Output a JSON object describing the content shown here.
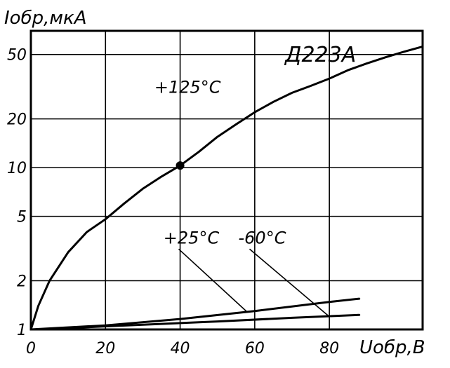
{
  "chart_data": {
    "type": "line",
    "title": "Д223А",
    "xlabel": "Uобр,В",
    "ylabel": "Iобр,мкА",
    "xlim": [
      0,
      105
    ],
    "ylim": [
      1,
      70
    ],
    "y_scale": "log",
    "grid": true,
    "x_ticks": [
      0,
      20,
      40,
      60,
      80
    ],
    "x_tick_labels": [
      "0",
      "20",
      "40",
      "60",
      "80"
    ],
    "y_ticks": [
      1,
      2,
      5,
      10,
      20,
      50
    ],
    "y_tick_labels": [
      "1",
      "2",
      "5",
      "10",
      "20",
      "50"
    ],
    "series": [
      {
        "name": "+125°C",
        "x": [
          0,
          2,
          5,
          10,
          15,
          20,
          25,
          30,
          35,
          40,
          45,
          50,
          55,
          60,
          65,
          70,
          75,
          80,
          85,
          90,
          95,
          100,
          105
        ],
        "y": [
          1.0,
          1.4,
          2.0,
          3.0,
          4.0,
          4.8,
          6.0,
          7.4,
          8.8,
          10.3,
          12.5,
          15.5,
          18.5,
          22.0,
          25.5,
          29.0,
          32.0,
          35.5,
          40.0,
          44.0,
          48.0,
          52.0,
          56.0
        ]
      },
      {
        "name": "+25°C",
        "x": [
          0,
          20,
          40,
          60,
          80,
          88
        ],
        "y": [
          1.0,
          1.06,
          1.16,
          1.3,
          1.48,
          1.55
        ]
      },
      {
        "name": "-60°C",
        "x": [
          10,
          30,
          50,
          70,
          88
        ],
        "y": [
          1.02,
          1.07,
          1.12,
          1.18,
          1.23
        ]
      }
    ],
    "annotations": [
      {
        "text": "+125°C",
        "x": 42,
        "y": 29
      },
      {
        "text": "+25°C",
        "x": 43,
        "y": 3.4
      },
      {
        "text": "-60°C",
        "x": 62,
        "y": 3.4
      }
    ],
    "markers": [
      {
        "x": 40,
        "y": 10.3
      }
    ]
  }
}
